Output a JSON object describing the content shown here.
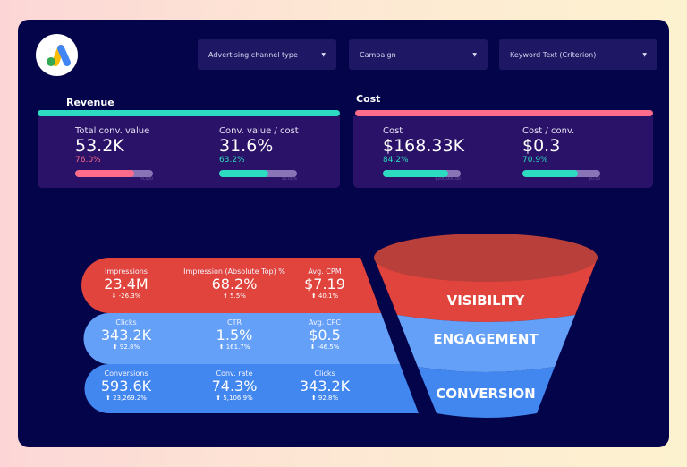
{
  "colors": {
    "background": "#04044a",
    "revenue": "#2ddcc0",
    "cost": "#ff6b8a",
    "visibility": "#e0443c",
    "engagement": "#64a0f8",
    "conversion": "#4287f0"
  },
  "logo": "google-ads-logo",
  "filters": [
    {
      "label": "Advertising channel type"
    },
    {
      "label": "Campaign"
    },
    {
      "label": "Keyword Text (Criterion)"
    }
  ],
  "revenue": {
    "title": "Revenue",
    "kpis": [
      {
        "label": "Total conv. value",
        "value": "53.2K",
        "percent": "76.0%",
        "progress": 76.0,
        "target": "70,000",
        "color": "#ff6b8a"
      },
      {
        "label": "Conv. value / cost",
        "value": "31.6%",
        "percent": "63.2%",
        "progress": 63.2,
        "target": "50.00%",
        "color": "#2ddcc0"
      }
    ]
  },
  "cost": {
    "title": "Cost",
    "kpis": [
      {
        "label": "Cost",
        "value": "$168.33K",
        "percent": "84.2%",
        "progress": 84.2,
        "target": "$200,000.00",
        "color": "#2ddcc0"
      },
      {
        "label": "Cost / conv.",
        "value": "$0.3",
        "percent": "70.9%",
        "progress": 70.9,
        "target": "$0.40",
        "color": "#2ddcc0"
      }
    ]
  },
  "funnel": {
    "stages": [
      {
        "label": "VISIBILITY"
      },
      {
        "label": "ENGAGEMENT"
      },
      {
        "label": "CONVERSION"
      }
    ],
    "rows": [
      [
        {
          "label": "Impressions",
          "value": "23.4M",
          "change": "⬇ -26.3%"
        },
        {
          "label": "Impression (Absolute Top) %",
          "value": "68.2%",
          "change": "⬆ 5.5%"
        },
        {
          "label": "Avg. CPM",
          "value": "$7.19",
          "change": "⬆ 40.1%"
        }
      ],
      [
        {
          "label": "Clicks",
          "value": "343.2K",
          "change": "⬆ 92.8%"
        },
        {
          "label": "CTR",
          "value": "1.5%",
          "change": "⬆ 161.7%"
        },
        {
          "label": "Avg. CPC",
          "value": "$0.5",
          "change": "⬇ -46.5%"
        }
      ],
      [
        {
          "label": "Conversions",
          "value": "593.6K",
          "change": "⬆ 23,269.2%"
        },
        {
          "label": "Conv. rate",
          "value": "74.3%",
          "change": "⬆ 5,106.9%"
        },
        {
          "label": "Clicks",
          "value": "343.2K",
          "change": "⬆ 92.8%"
        }
      ]
    ]
  }
}
